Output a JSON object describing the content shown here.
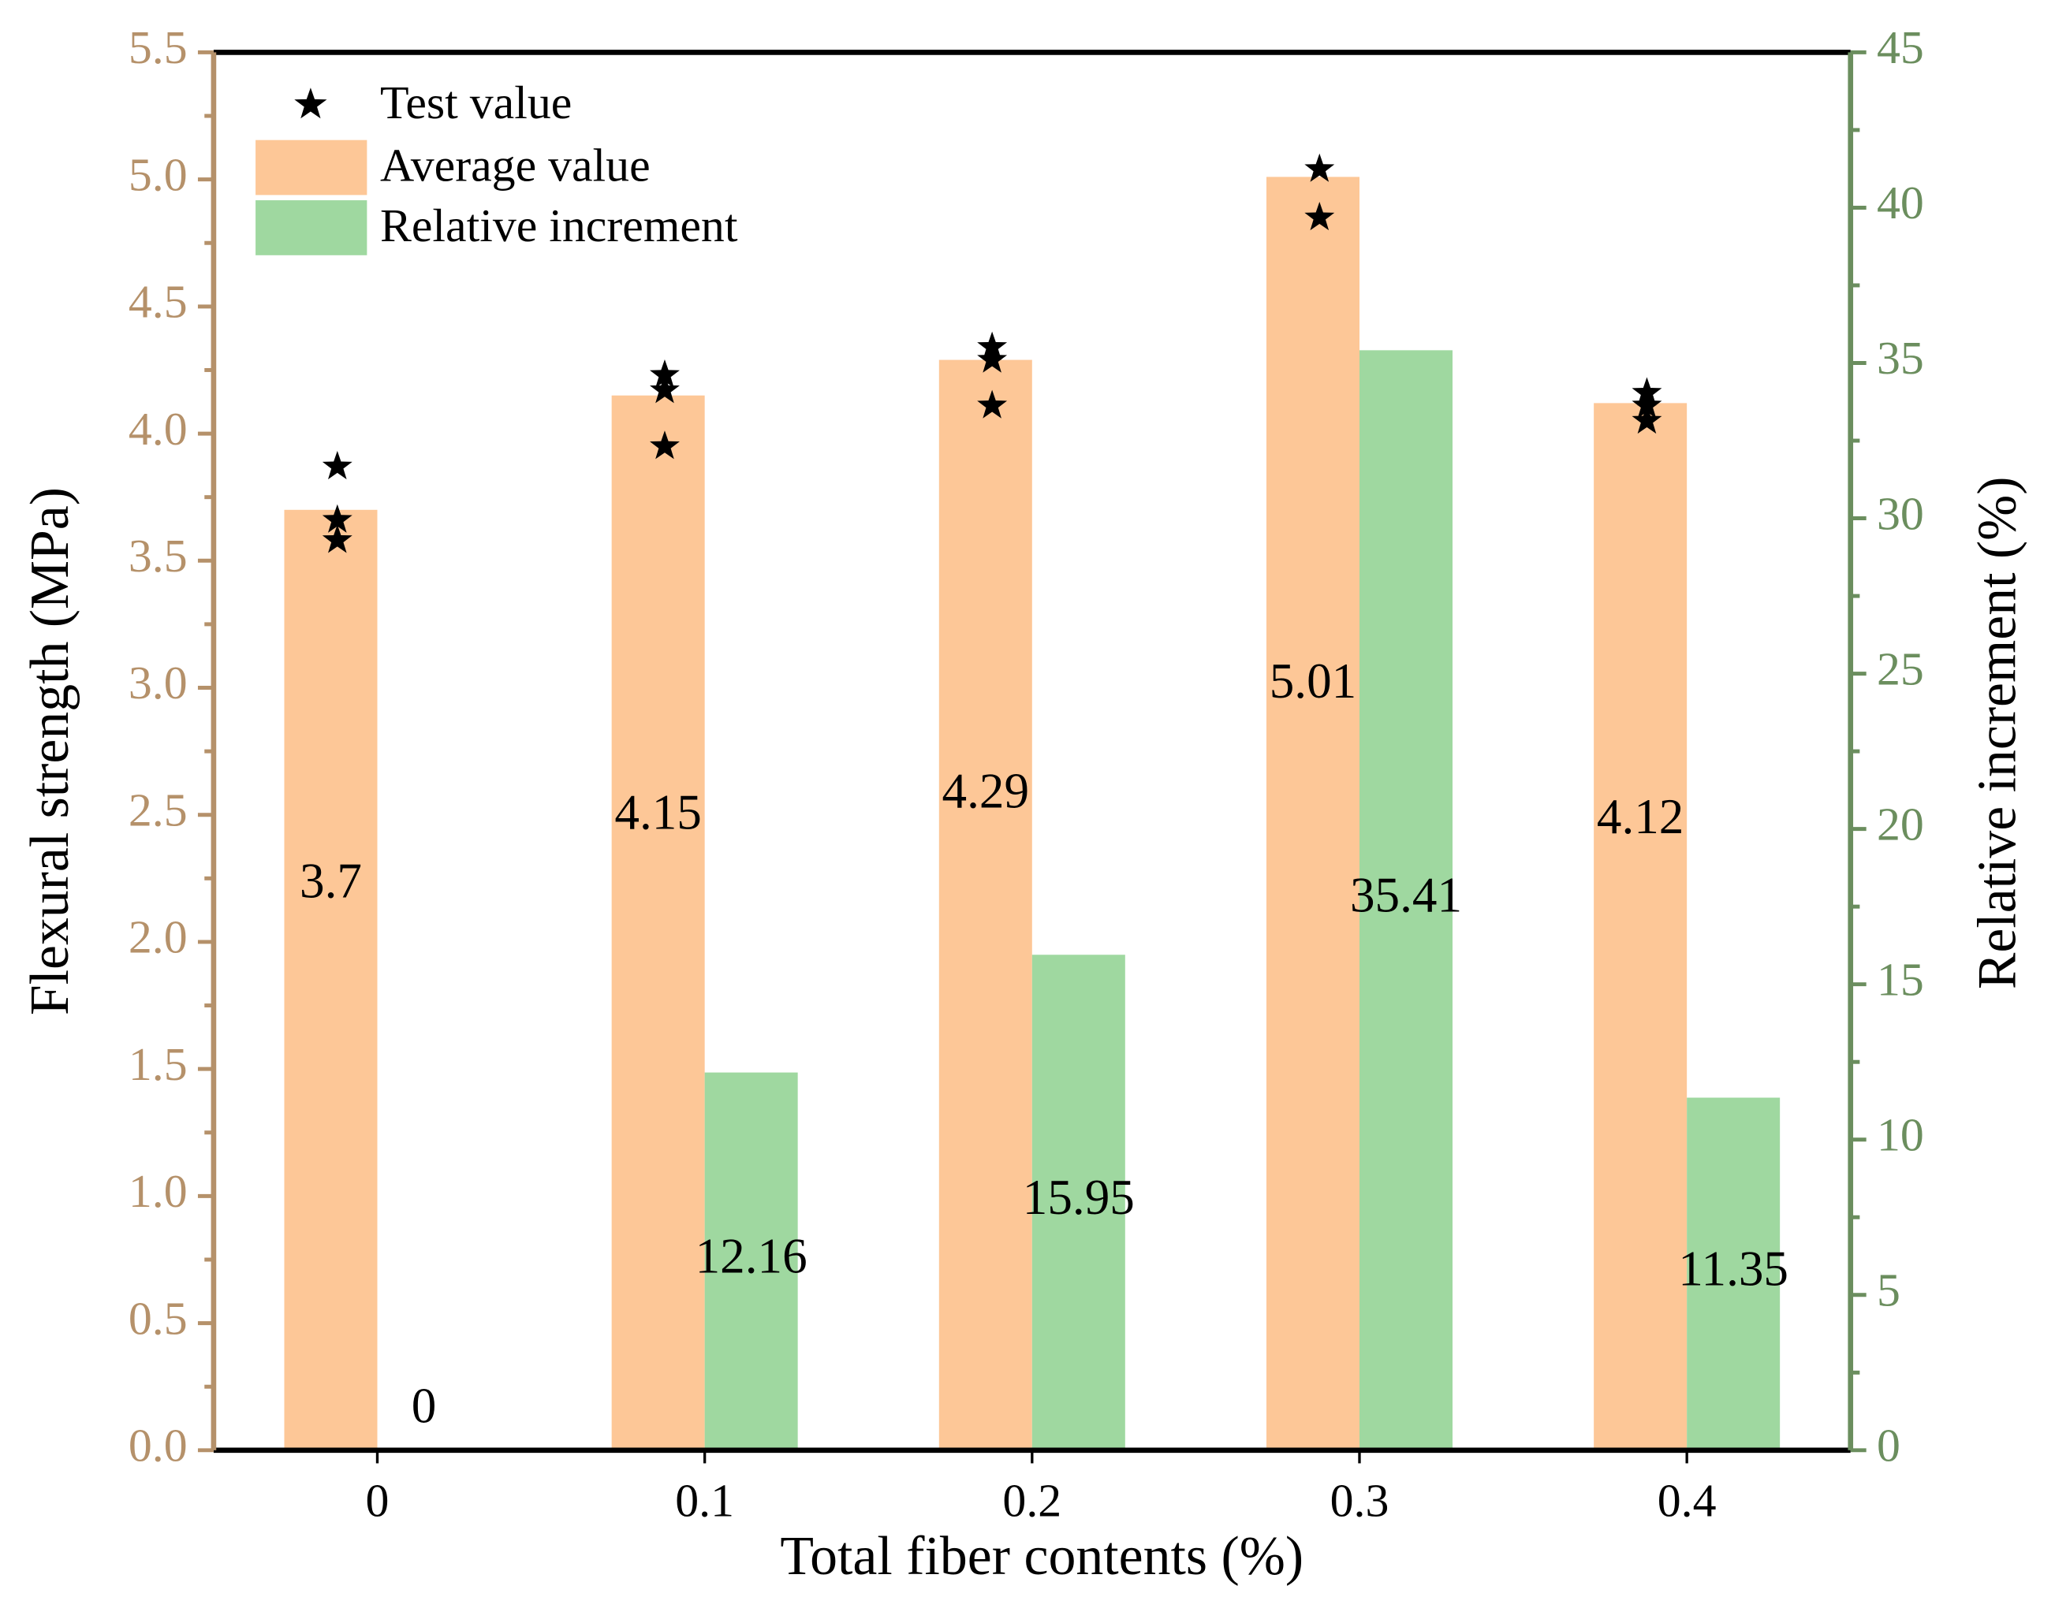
{
  "chart_data": {
    "type": "bar",
    "x_label": "Total fiber contents (%)",
    "y_label": "Flexural strength (MPa)",
    "y2_label": "Relative increment (%)",
    "categories": [
      "0",
      "0.1",
      "0.2",
      "0.3",
      "0.4"
    ],
    "series": [
      {
        "name": "Average value",
        "color": "#fdc797",
        "axis": "y",
        "values": [
          3.7,
          4.15,
          4.29,
          5.01,
          4.12
        ]
      },
      {
        "name": "Relative increment",
        "color": "#9fd8a0",
        "axis": "y2",
        "values": [
          0,
          12.16,
          15.95,
          35.41,
          11.35
        ]
      }
    ],
    "test_values": {
      "name": "Test value",
      "color": "#000000",
      "values": [
        [
          3.87,
          3.66,
          3.58
        ],
        [
          4.23,
          4.17,
          3.95
        ],
        [
          4.34,
          4.29,
          4.11
        ],
        [
          5.04,
          4.85
        ],
        [
          4.16,
          4.11,
          4.05
        ]
      ]
    },
    "ylim": [
      0,
      5.5
    ],
    "yticks": [
      {
        "value": 0,
        "label": "0.0"
      },
      {
        "value": 0.5,
        "label": "0.5"
      },
      {
        "value": 1,
        "label": "1.0"
      },
      {
        "value": 1.5,
        "label": "1.5"
      },
      {
        "value": 2,
        "label": "2.0"
      },
      {
        "value": 2.5,
        "label": "2.5"
      },
      {
        "value": 3,
        "label": "3.0"
      },
      {
        "value": 3.5,
        "label": "3.5"
      },
      {
        "value": 4,
        "label": "4.0"
      },
      {
        "value": 4.5,
        "label": "4.5"
      },
      {
        "value": 5,
        "label": "5.0"
      },
      {
        "value": 5.5,
        "label": "5.5"
      }
    ],
    "y2lim": [
      0,
      45
    ],
    "y2ticks": [
      0,
      5,
      10,
      15,
      20,
      25,
      30,
      35,
      40,
      45
    ],
    "y_axis_color": "#b5916a",
    "y2_axis_color": "#6b8e5e",
    "legend": "upper left",
    "grid": false
  }
}
